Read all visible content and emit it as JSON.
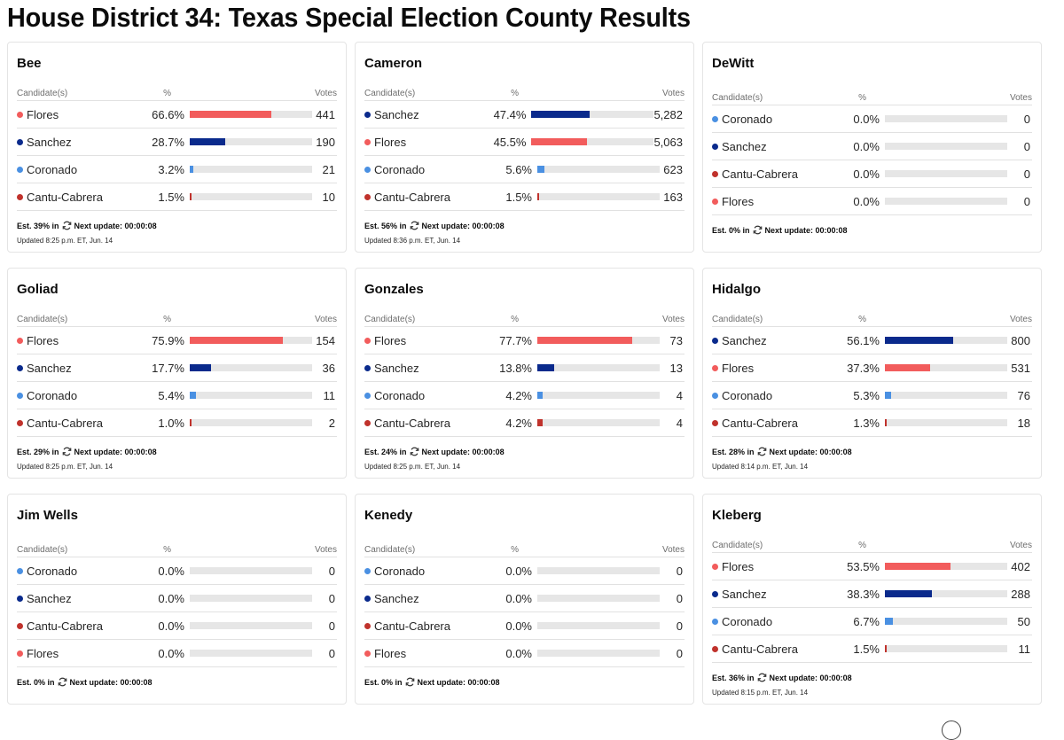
{
  "page": {
    "title": "House District 34: Texas Special Election County Results"
  },
  "labels": {
    "candidates": "Candidate(s)",
    "pct": "%",
    "votes": "Votes",
    "est_in_suffix": "in",
    "next_update": "Next update: 00:00:08"
  },
  "colors": {
    "Flores": "#f25c5c",
    "Sanchez": "#0a2a8c",
    "Coronado": "#4a90e2",
    "Cantu-Cabrera": "#c0322c",
    "bar_bg": "#e6e6e6"
  },
  "counties": [
    {
      "name": "Bee",
      "est": "Est. 39%",
      "updated": "Updated 8:25 p.m. ET, Jun. 14",
      "rows": [
        {
          "candidate": "Flores",
          "pct": "66.6%",
          "share": 66.6,
          "votes": "441"
        },
        {
          "candidate": "Sanchez",
          "pct": "28.7%",
          "share": 28.7,
          "votes": "190"
        },
        {
          "candidate": "Coronado",
          "pct": "3.2%",
          "share": 3.2,
          "votes": "21"
        },
        {
          "candidate": "Cantu-Cabrera",
          "pct": "1.5%",
          "share": 1.5,
          "votes": "10"
        }
      ]
    },
    {
      "name": "Cameron",
      "est": "Est. 56%",
      "updated": "Updated 8:36 p.m. ET, Jun. 14",
      "rows": [
        {
          "candidate": "Sanchez",
          "pct": "47.4%",
          "share": 47.4,
          "votes": "5,282"
        },
        {
          "candidate": "Flores",
          "pct": "45.5%",
          "share": 45.5,
          "votes": "5,063"
        },
        {
          "candidate": "Coronado",
          "pct": "5.6%",
          "share": 5.6,
          "votes": "623"
        },
        {
          "candidate": "Cantu-Cabrera",
          "pct": "1.5%",
          "share": 1.5,
          "votes": "163"
        }
      ]
    },
    {
      "name": "DeWitt",
      "est": "Est. 0%",
      "updated": null,
      "rows": [
        {
          "candidate": "Coronado",
          "pct": "0.0%",
          "share": 0,
          "votes": "0"
        },
        {
          "candidate": "Sanchez",
          "pct": "0.0%",
          "share": 0,
          "votes": "0"
        },
        {
          "candidate": "Cantu-Cabrera",
          "pct": "0.0%",
          "share": 0,
          "votes": "0"
        },
        {
          "candidate": "Flores",
          "pct": "0.0%",
          "share": 0,
          "votes": "0"
        }
      ]
    },
    {
      "name": "Goliad",
      "est": "Est. 29%",
      "updated": "Updated 8:25 p.m. ET, Jun. 14",
      "rows": [
        {
          "candidate": "Flores",
          "pct": "75.9%",
          "share": 75.9,
          "votes": "154"
        },
        {
          "candidate": "Sanchez",
          "pct": "17.7%",
          "share": 17.7,
          "votes": "36"
        },
        {
          "candidate": "Coronado",
          "pct": "5.4%",
          "share": 5.4,
          "votes": "11"
        },
        {
          "candidate": "Cantu-Cabrera",
          "pct": "1.0%",
          "share": 1.0,
          "votes": "2"
        }
      ]
    },
    {
      "name": "Gonzales",
      "est": "Est. 24%",
      "updated": "Updated 8:25 p.m. ET, Jun. 14",
      "rows": [
        {
          "candidate": "Flores",
          "pct": "77.7%",
          "share": 77.7,
          "votes": "73"
        },
        {
          "candidate": "Sanchez",
          "pct": "13.8%",
          "share": 13.8,
          "votes": "13"
        },
        {
          "candidate": "Coronado",
          "pct": "4.2%",
          "share": 4.2,
          "votes": "4"
        },
        {
          "candidate": "Cantu-Cabrera",
          "pct": "4.2%",
          "share": 4.2,
          "votes": "4"
        }
      ]
    },
    {
      "name": "Hidalgo",
      "est": "Est. 28%",
      "updated": "Updated 8:14 p.m. ET, Jun. 14",
      "rows": [
        {
          "candidate": "Sanchez",
          "pct": "56.1%",
          "share": 56.1,
          "votes": "800"
        },
        {
          "candidate": "Flores",
          "pct": "37.3%",
          "share": 37.3,
          "votes": "531"
        },
        {
          "candidate": "Coronado",
          "pct": "5.3%",
          "share": 5.3,
          "votes": "76"
        },
        {
          "candidate": "Cantu-Cabrera",
          "pct": "1.3%",
          "share": 1.3,
          "votes": "18"
        }
      ]
    },
    {
      "name": "Jim Wells",
      "est": "Est. 0%",
      "updated": null,
      "rows": [
        {
          "candidate": "Coronado",
          "pct": "0.0%",
          "share": 0,
          "votes": "0"
        },
        {
          "candidate": "Sanchez",
          "pct": "0.0%",
          "share": 0,
          "votes": "0"
        },
        {
          "candidate": "Cantu-Cabrera",
          "pct": "0.0%",
          "share": 0,
          "votes": "0"
        },
        {
          "candidate": "Flores",
          "pct": "0.0%",
          "share": 0,
          "votes": "0"
        }
      ]
    },
    {
      "name": "Kenedy",
      "est": "Est. 0%",
      "updated": null,
      "rows": [
        {
          "candidate": "Coronado",
          "pct": "0.0%",
          "share": 0,
          "votes": "0"
        },
        {
          "candidate": "Sanchez",
          "pct": "0.0%",
          "share": 0,
          "votes": "0"
        },
        {
          "candidate": "Cantu-Cabrera",
          "pct": "0.0%",
          "share": 0,
          "votes": "0"
        },
        {
          "candidate": "Flores",
          "pct": "0.0%",
          "share": 0,
          "votes": "0"
        }
      ]
    },
    {
      "name": "Kleberg",
      "est": "Est. 36%",
      "updated": "Updated 8:15 p.m. ET, Jun. 14",
      "rows": [
        {
          "candidate": "Flores",
          "pct": "53.5%",
          "share": 53.5,
          "votes": "402"
        },
        {
          "candidate": "Sanchez",
          "pct": "38.3%",
          "share": 38.3,
          "votes": "288"
        },
        {
          "candidate": "Coronado",
          "pct": "6.7%",
          "share": 6.7,
          "votes": "50"
        },
        {
          "candidate": "Cantu-Cabrera",
          "pct": "1.5%",
          "share": 1.5,
          "votes": "11"
        }
      ]
    }
  ]
}
